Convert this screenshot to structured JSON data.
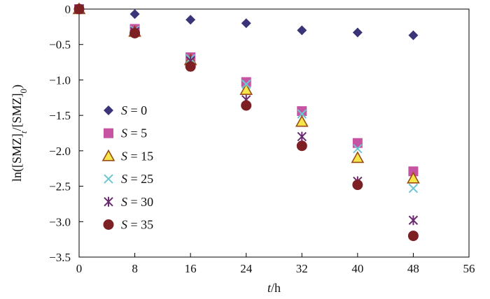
{
  "chart_data": {
    "type": "scatter",
    "title": "",
    "xlabel": {
      "var": "t",
      "unit": "/h"
    },
    "ylabel": "ln([SMZ]ₜ/[SMZ]₀)",
    "ylabel_parts": {
      "main": "ln([SMZ]",
      "sub1": "t",
      "mid": "/[SMZ]",
      "sub2": "0",
      "end": ")"
    },
    "xlim": [
      0,
      56
    ],
    "ylim": [
      -3.5,
      0
    ],
    "xticks": [
      0,
      8,
      16,
      24,
      32,
      40,
      48,
      56
    ],
    "yticks": [
      0,
      -0.5,
      -1.0,
      -1.5,
      -2.0,
      -2.5,
      -3.0,
      -3.5
    ],
    "ytick_labels": [
      "0",
      "−0.5",
      "−1.0",
      "−1.5",
      "−2.0",
      "−2.5",
      "−3.0",
      "−3.5"
    ],
    "xtick_labels": [
      "0",
      "8",
      "16",
      "24",
      "32",
      "40",
      "48",
      "56"
    ],
    "grid": false,
    "legend_position": "left-middle",
    "x": [
      0,
      8,
      16,
      24,
      32,
      40,
      48
    ],
    "series": [
      {
        "name": "S = 0",
        "var": "S",
        "value": "0",
        "marker": "diamond",
        "color": "#3b3478",
        "values": [
          0,
          -0.07,
          -0.15,
          -0.2,
          -0.3,
          -0.33,
          -0.37
        ]
      },
      {
        "name": "S = 5",
        "var": "S",
        "value": "5",
        "marker": "square",
        "color": "#c654a3",
        "values": [
          0,
          -0.28,
          -0.68,
          -1.03,
          -1.44,
          -1.89,
          -2.29
        ]
      },
      {
        "name": "S = 15",
        "var": "S",
        "value": "15",
        "marker": "triangle",
        "color": "#f5e64b",
        "stroke": "#9a4a12",
        "values": [
          0,
          -0.32,
          -0.72,
          -1.14,
          -1.59,
          -2.1,
          -2.39
        ]
      },
      {
        "name": "S = 25",
        "var": "S",
        "value": "25",
        "marker": "x",
        "color": "#6ec6d2",
        "values": [
          0,
          -0.3,
          -0.7,
          -1.06,
          -1.48,
          -1.97,
          -2.53
        ]
      },
      {
        "name": "S = 30",
        "var": "S",
        "value": "30",
        "marker": "asterisk",
        "color": "#6a2a70",
        "values": [
          0,
          -0.32,
          -0.73,
          -1.28,
          -1.8,
          -2.43,
          -2.98
        ]
      },
      {
        "name": "S = 35",
        "var": "S",
        "value": "35",
        "marker": "circle",
        "color": "#7c2024",
        "values": [
          0,
          -0.34,
          -0.81,
          -1.36,
          -1.93,
          -2.48,
          -3.2
        ]
      }
    ]
  }
}
